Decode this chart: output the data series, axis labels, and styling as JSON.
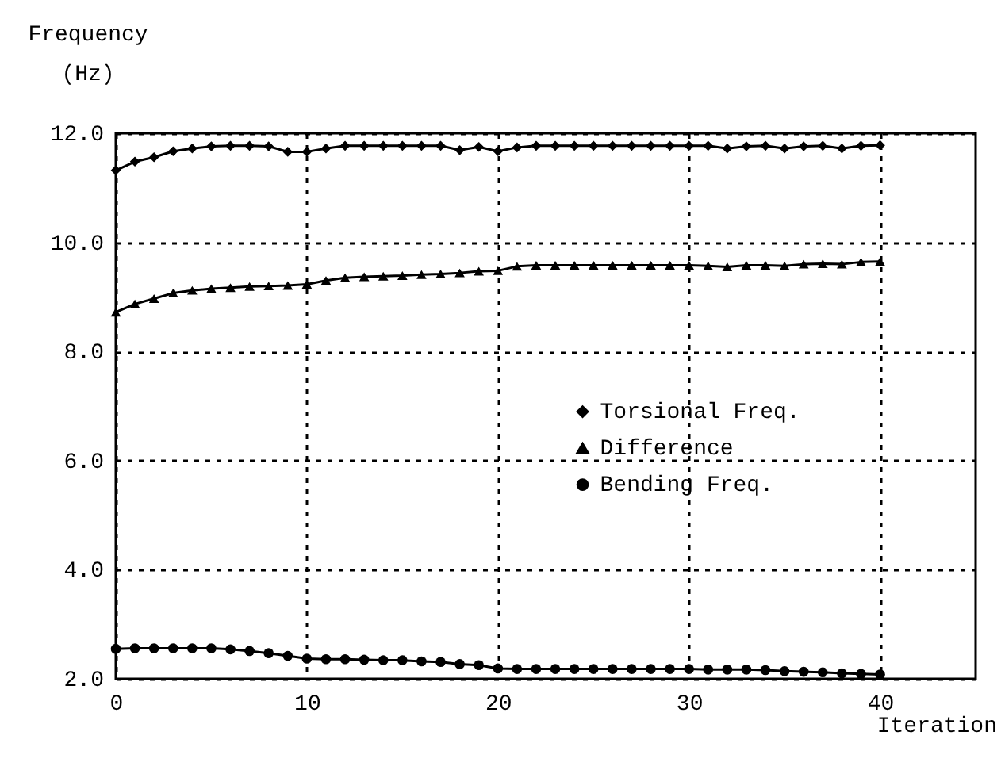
{
  "chart_data": {
    "type": "line",
    "xlabel": "Iteration",
    "ylabel": "Frequency\n(Hz)",
    "x": [
      0,
      1,
      2,
      3,
      4,
      5,
      6,
      7,
      8,
      9,
      10,
      11,
      12,
      13,
      14,
      15,
      16,
      17,
      18,
      19,
      20,
      21,
      22,
      23,
      24,
      25,
      26,
      27,
      28,
      29,
      30,
      31,
      32,
      33,
      34,
      35,
      36,
      37,
      38,
      39,
      40
    ],
    "series": [
      {
        "name": "Torsional Freq.",
        "color": "#000000",
        "marker": "diamond",
        "values": [
          11.32,
          11.48,
          11.56,
          11.67,
          11.72,
          11.76,
          11.77,
          11.77,
          11.76,
          11.66,
          11.66,
          11.72,
          11.77,
          11.77,
          11.77,
          11.77,
          11.77,
          11.77,
          11.69,
          11.75,
          11.67,
          11.74,
          11.77,
          11.77,
          11.77,
          11.77,
          11.77,
          11.77,
          11.77,
          11.77,
          11.77,
          11.77,
          11.72,
          11.76,
          11.77,
          11.72,
          11.76,
          11.77,
          11.72,
          11.77,
          11.78
        ]
      },
      {
        "name": "Difference",
        "color": "#000000",
        "marker": "triangle",
        "values": [
          8.72,
          8.87,
          8.97,
          9.07,
          9.12,
          9.15,
          9.17,
          9.19,
          9.2,
          9.21,
          9.23,
          9.3,
          9.35,
          9.37,
          9.38,
          9.39,
          9.41,
          9.42,
          9.44,
          9.47,
          9.48,
          9.56,
          9.58,
          9.58,
          9.58,
          9.58,
          9.58,
          9.58,
          9.58,
          9.58,
          9.58,
          9.57,
          9.55,
          9.58,
          9.58,
          9.57,
          9.6,
          9.61,
          9.6,
          9.64,
          9.65
        ]
      },
      {
        "name": "Bending Freq.",
        "color": "#000000",
        "marker": "circle",
        "values": [
          2.55,
          2.56,
          2.56,
          2.56,
          2.56,
          2.56,
          2.54,
          2.51,
          2.47,
          2.42,
          2.37,
          2.36,
          2.36,
          2.35,
          2.34,
          2.34,
          2.32,
          2.31,
          2.27,
          2.25,
          2.19,
          2.18,
          2.18,
          2.18,
          2.18,
          2.18,
          2.18,
          2.18,
          2.18,
          2.18,
          2.18,
          2.17,
          2.17,
          2.17,
          2.16,
          2.14,
          2.13,
          2.12,
          2.1,
          2.09,
          2.08
        ]
      }
    ],
    "xlim": [
      0,
      45
    ],
    "xticks": [
      0,
      10,
      20,
      30,
      40
    ],
    "ylim": [
      2,
      12
    ],
    "yticks": [
      {
        "value": 2,
        "label": "2.0"
      },
      {
        "value": 4,
        "label": "4.0"
      },
      {
        "value": 6,
        "label": "6.0"
      },
      {
        "value": 8,
        "label": "8.0"
      },
      {
        "value": 10,
        "label": "10.0"
      },
      {
        "value": 12,
        "label": "12.0"
      }
    ],
    "grid": true,
    "legend": "right",
    "line_style": "solid"
  }
}
